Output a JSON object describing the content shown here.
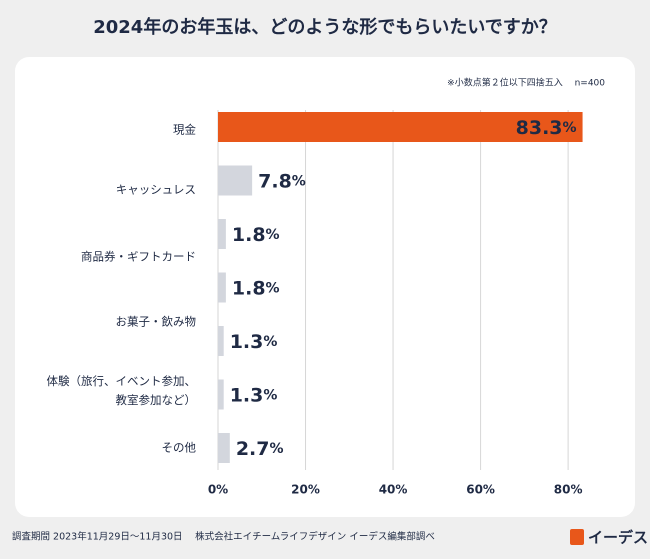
{
  "chart_data": {
    "type": "barh",
    "title": "2024年のお年玉は、どのような形でもらいたいですか？",
    "annotation": "※小数点第２位以下四捨五入　 n=400",
    "categories": [
      "現金",
      "キャッシュレス",
      "商品券・ギフトカード",
      null,
      "お菓子・飲み物",
      "体験（旅行、イベント参加、教室参加など）",
      "その他"
    ],
    "values": [
      83.3,
      7.8,
      1.8,
      1.8,
      1.3,
      1.3,
      2.7
    ],
    "value_labels": [
      "83.3%",
      "7.8%",
      "1.8%",
      "1.8%",
      "1.3%",
      "1.3%",
      "2.7%"
    ],
    "colors": [
      "#e8571a",
      "#d3d6dd",
      "#d3d6dd",
      "#d3d6dd",
      "#d3d6dd",
      "#d3d6dd",
      "#d3d6dd"
    ],
    "xlim": [
      0,
      85
    ],
    "xticks": [
      {
        "value": 0,
        "label": "0%"
      },
      {
        "value": 20,
        "label": "20%"
      },
      {
        "value": 40,
        "label": "40%"
      },
      {
        "value": 60,
        "label": "60%"
      },
      {
        "value": 80,
        "label": "80%"
      }
    ],
    "grid": true
  },
  "footer": {
    "source": "調査期間 2023年11月29日～11月30日　 株式会社エイチームライフデザイン イーデス編集部調べ",
    "logo": "イーデス"
  }
}
